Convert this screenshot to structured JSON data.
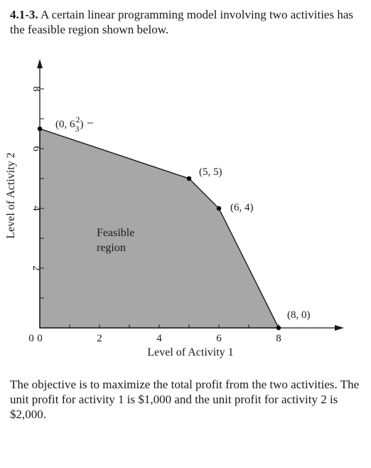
{
  "problem": {
    "number": "4.1-3.",
    "intro": "A certain linear programming model involving two activities has the feasible region shown below."
  },
  "figure": {
    "region_label_line1": "Feasible",
    "region_label_line2": "region",
    "xlabel": "Level of Activity 1",
    "ylabel": "Level of Activity 2",
    "fill_color": "#a7a7a7"
  },
  "chart_data": {
    "type": "area",
    "title": "",
    "xlabel": "Level of Activity 1",
    "ylabel": "Level of Activity 2",
    "xlim": [
      0,
      10
    ],
    "ylim": [
      0,
      9
    ],
    "x_ticks": [
      {
        "value": 0,
        "label": "0"
      },
      {
        "value": 1,
        "label": ""
      },
      {
        "value": 2,
        "label": "2"
      },
      {
        "value": 3,
        "label": ""
      },
      {
        "value": 4,
        "label": "4"
      },
      {
        "value": 5,
        "label": ""
      },
      {
        "value": 6,
        "label": "6"
      },
      {
        "value": 7,
        "label": ""
      },
      {
        "value": 8,
        "label": "8"
      }
    ],
    "y_ticks": [
      {
        "value": 1,
        "label": ""
      },
      {
        "value": 2,
        "label": "2"
      },
      {
        "value": 3,
        "label": ""
      },
      {
        "value": 4,
        "label": "4"
      },
      {
        "value": 5,
        "label": ""
      },
      {
        "value": 6,
        "label": "6"
      },
      {
        "value": 7,
        "label": ""
      },
      {
        "value": 8,
        "label": "8"
      }
    ],
    "region": [
      [
        0,
        0
      ],
      [
        0,
        6.6667
      ],
      [
        5,
        5
      ],
      [
        6,
        4
      ],
      [
        8,
        0
      ]
    ],
    "points": [
      {
        "x": 0,
        "y": 6.6667,
        "label": "(0, 6⅔)",
        "label_main": "(0, 6",
        "label_num": "2",
        "label_den": "3",
        "label_close": ")"
      },
      {
        "x": 5,
        "y": 5,
        "label": "(5, 5)"
      },
      {
        "x": 6,
        "y": 4,
        "label": "(6, 4)"
      },
      {
        "x": 8,
        "y": 0,
        "label": "(8, 0)"
      }
    ],
    "grid": false
  },
  "answer": {
    "text": "The objective is to maximize the total profit from the two activities. The unit profit for activity 1 is $1,000 and the unit profit for activity 2 is $2,000."
  }
}
